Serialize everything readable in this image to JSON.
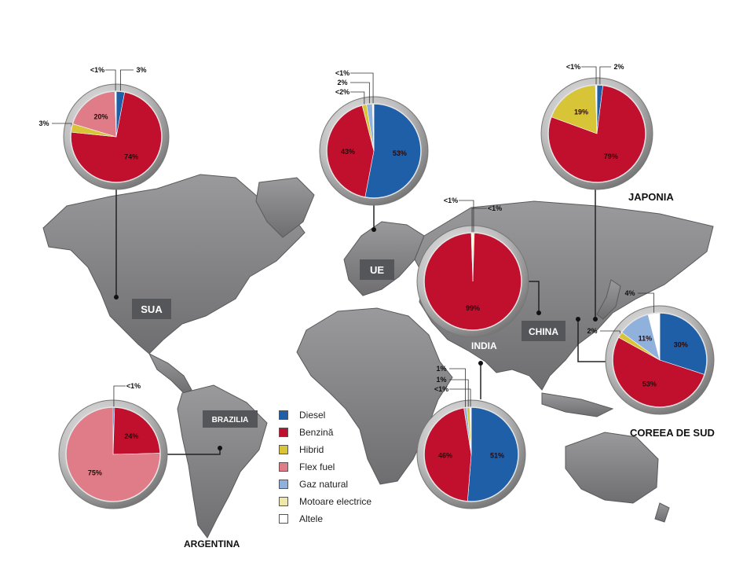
{
  "legend": [
    {
      "label": "Diesel",
      "color": "#1f5fa8"
    },
    {
      "label": "Benzină",
      "color": "#c0102e"
    },
    {
      "label": "Hibrid",
      "color": "#d8c437"
    },
    {
      "label": "Flex fuel",
      "color": "#e07b88"
    },
    {
      "label": "Gaz natural",
      "color": "#8fb1dc"
    },
    {
      "label": "Motoare electrice",
      "color": "#efe7a8"
    },
    {
      "label": "Altele",
      "color": "#ffffff"
    }
  ],
  "regions": {
    "sua": "SUA",
    "ue": "UE",
    "china": "CHINA",
    "india": "INDIA",
    "brazilia": "BRAZILIA",
    "argentina": "ARGENTINA",
    "japonia": "JAPONIA",
    "coreea": "COREEA DE SUD"
  },
  "chart_data": [
    {
      "type": "pie",
      "region": "SUA",
      "slices": [
        {
          "name": "Diesel",
          "value": 3,
          "label": "3%"
        },
        {
          "name": "Benzină",
          "value": 74,
          "label": "74%"
        },
        {
          "name": "Hibrid",
          "value": 3,
          "label": "3%"
        },
        {
          "name": "Flex fuel",
          "value": 20,
          "label": "20%"
        },
        {
          "name": "Altele",
          "value": 0.5,
          "label": "<1%"
        }
      ]
    },
    {
      "type": "pie",
      "region": "UE",
      "slices": [
        {
          "name": "Diesel",
          "value": 53,
          "label": "53%"
        },
        {
          "name": "Benzină",
          "value": 43,
          "label": "43%"
        },
        {
          "name": "Hibrid",
          "value": 1.5,
          "label": "<2%"
        },
        {
          "name": "Gaz natural",
          "value": 2,
          "label": "2%"
        },
        {
          "name": "Altele",
          "value": 0.5,
          "label": "<1%"
        }
      ]
    },
    {
      "type": "pie",
      "region": "JAPONIA",
      "slices": [
        {
          "name": "Diesel",
          "value": 2,
          "label": "2%"
        },
        {
          "name": "Benzină",
          "value": 79,
          "label": "79%"
        },
        {
          "name": "Hibrid",
          "value": 19,
          "label": "19%"
        },
        {
          "name": "Altele",
          "value": 0.5,
          "label": "<1%"
        }
      ]
    },
    {
      "type": "pie",
      "region": "CHINA",
      "slices": [
        {
          "name": "Benzină",
          "value": 99,
          "label": "99%"
        },
        {
          "name": "Motoare electrice",
          "value": 0.5,
          "label": "<1%"
        },
        {
          "name": "Altele",
          "value": 0.5,
          "label": "<1%"
        }
      ]
    },
    {
      "type": "pie",
      "region": "COREEA DE SUD",
      "slices": [
        {
          "name": "Diesel",
          "value": 30,
          "label": "30%"
        },
        {
          "name": "Benzină",
          "value": 53,
          "label": "53%"
        },
        {
          "name": "Hibrid",
          "value": 2,
          "label": "2%"
        },
        {
          "name": "Gaz natural",
          "value": 11,
          "label": "11%"
        },
        {
          "name": "Altele",
          "value": 4,
          "label": "4%"
        }
      ]
    },
    {
      "type": "pie",
      "region": "BRAZILIA",
      "slices": [
        {
          "name": "Benzină",
          "value": 24,
          "label": "24%"
        },
        {
          "name": "Flex fuel",
          "value": 75,
          "label": "75%"
        },
        {
          "name": "Diesel",
          "value": 0.5,
          "label": "<1%"
        }
      ]
    },
    {
      "type": "pie",
      "region": "INDIA",
      "slices": [
        {
          "name": "Diesel",
          "value": 51,
          "label": "51%"
        },
        {
          "name": "Benzină",
          "value": 46,
          "label": "46%"
        },
        {
          "name": "Gaz natural",
          "value": 1,
          "label": "1%"
        },
        {
          "name": "Hibrid",
          "value": 1,
          "label": "1%"
        },
        {
          "name": "Altele",
          "value": 0.5,
          "label": "<1%"
        }
      ]
    }
  ]
}
